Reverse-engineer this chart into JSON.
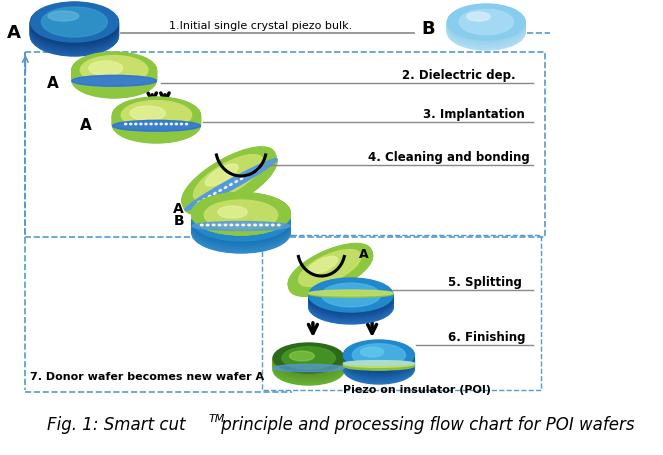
{
  "bg_color": "#ffffff",
  "steps": [
    "1.Initial single crystal piezo bulk.",
    "2. Dielectric dep.",
    "3. Implantation",
    "4. Cleaning and bonding",
    "5. Splitting",
    "6. Finishing",
    "7. Donor wafer becomes new wafer A"
  ],
  "poi_label": "Piezo on insulator (POI)",
  "title_base": "Fig. 1: Smart cut",
  "title_sup": "TM",
  "title_end": " principle and processing flow chart for POI wafers",
  "line_color": "#888888",
  "dash_color": "#5599cc",
  "green_body": "#8dc63f",
  "green_top": "#c8e06a",
  "green_hi": "#e8f5a0",
  "blue_wafer_top": "#4db8e8",
  "blue_wafer_mid": "#2288cc",
  "blue_wafer_dark": "#1155aa",
  "blue_wafer_b_top": "#aaddee",
  "blue_wafer_b_hi": "#ddf0f8",
  "blue_thin": "#5599dd",
  "blue_thin_dark": "#2266bb"
}
